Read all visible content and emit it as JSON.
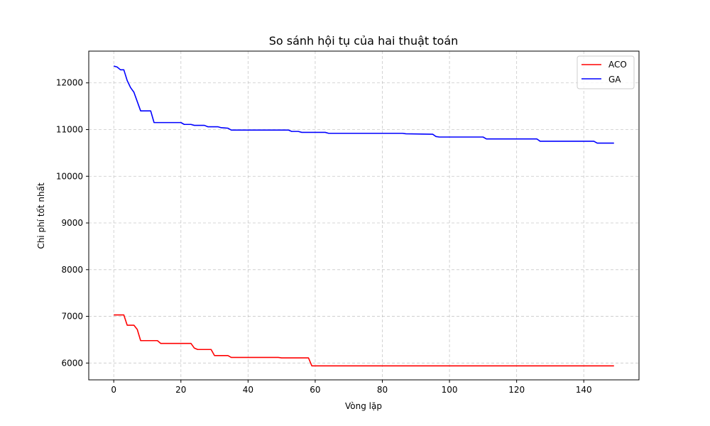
{
  "chart_data": {
    "type": "line",
    "title": "So sánh hội tụ của hai thuật toán",
    "xlabel": "Vòng lặp",
    "ylabel": "Chi phí tốt nhất",
    "xlim": [
      -7.45,
      156.45
    ],
    "ylim": [
      5640,
      12680
    ],
    "xticks": [
      0,
      20,
      40,
      60,
      80,
      100,
      120,
      140
    ],
    "yticks": [
      6000,
      7000,
      8000,
      9000,
      10000,
      11000,
      12000
    ],
    "grid": true,
    "legend": "top-right",
    "series": [
      {
        "name": "ACO",
        "color": "#ff0000",
        "points": [
          [
            0,
            7030
          ],
          [
            3,
            7030
          ],
          [
            4,
            6810
          ],
          [
            6,
            6810
          ],
          [
            7,
            6720
          ],
          [
            8,
            6480
          ],
          [
            12,
            6480
          ],
          [
            13,
            6480
          ],
          [
            14,
            6420
          ],
          [
            23,
            6420
          ],
          [
            24,
            6320
          ],
          [
            25,
            6290
          ],
          [
            29,
            6290
          ],
          [
            30,
            6160
          ],
          [
            34,
            6160
          ],
          [
            35,
            6120
          ],
          [
            49,
            6120
          ],
          [
            50,
            6110
          ],
          [
            58,
            6110
          ],
          [
            59,
            5940
          ],
          [
            149,
            5940
          ]
        ]
      },
      {
        "name": "GA",
        "color": "#0000ff",
        "points": [
          [
            0,
            12360
          ],
          [
            1,
            12340
          ],
          [
            2,
            12280
          ],
          [
            3,
            12280
          ],
          [
            4,
            12050
          ],
          [
            5,
            11900
          ],
          [
            6,
            11800
          ],
          [
            8,
            11400
          ],
          [
            11,
            11400
          ],
          [
            12,
            11150
          ],
          [
            20,
            11150
          ],
          [
            21,
            11110
          ],
          [
            23,
            11110
          ],
          [
            24,
            11090
          ],
          [
            27,
            11090
          ],
          [
            28,
            11060
          ],
          [
            31,
            11060
          ],
          [
            32,
            11040
          ],
          [
            34,
            11030
          ],
          [
            35,
            10990
          ],
          [
            52,
            10990
          ],
          [
            53,
            10960
          ],
          [
            55,
            10960
          ],
          [
            56,
            10940
          ],
          [
            63,
            10940
          ],
          [
            64,
            10920
          ],
          [
            86,
            10920
          ],
          [
            87,
            10910
          ],
          [
            95,
            10900
          ],
          [
            96,
            10850
          ],
          [
            97,
            10840
          ],
          [
            110,
            10840
          ],
          [
            111,
            10800
          ],
          [
            126,
            10800
          ],
          [
            127,
            10750
          ],
          [
            143,
            10750
          ],
          [
            144,
            10710
          ],
          [
            149,
            10710
          ]
        ]
      }
    ]
  }
}
